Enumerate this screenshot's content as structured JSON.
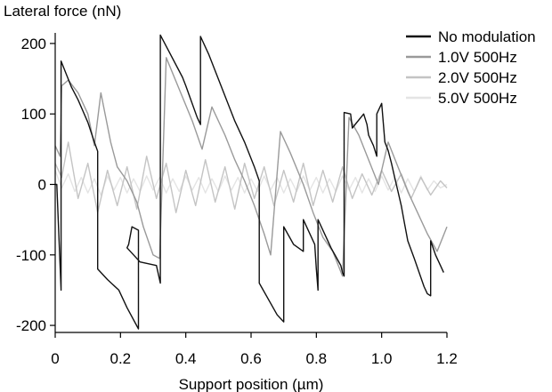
{
  "chart_data": {
    "type": "line",
    "title": "",
    "xlabel": "Support position (µm)",
    "ylabel": "Lateral force (nN)",
    "xlim": [
      0,
      1.2
    ],
    "ylim": [
      -210,
      215
    ],
    "x_ticks": [
      0,
      0.2,
      0.4,
      0.6,
      0.8,
      1.0,
      1.2
    ],
    "x_tick_labels": [
      "0",
      "0.2",
      "0.4",
      "0.6",
      "0.8",
      "1.0",
      "1.2"
    ],
    "y_ticks": [
      200,
      100,
      0,
      -100,
      -200
    ],
    "y_tick_labels": [
      "200",
      "100",
      "0",
      "-100",
      "-200"
    ],
    "grid": false,
    "legend_position": "top-right",
    "series": [
      {
        "name": "No modulation",
        "color": "#111111",
        "points": [
          [
            0.0,
            0.0
          ],
          [
            0.005,
            0.0
          ],
          [
            0.018,
            -150
          ],
          [
            0.018,
            175
          ],
          [
            0.05,
            138
          ],
          [
            0.07,
            120
          ],
          [
            0.1,
            88
          ],
          [
            0.12,
            60
          ],
          [
            0.13,
            47
          ],
          [
            0.13,
            -120
          ],
          [
            0.16,
            -135
          ],
          [
            0.195,
            -150
          ],
          [
            0.22,
            -175
          ],
          [
            0.255,
            -205
          ],
          [
            0.255,
            -65
          ],
          [
            0.235,
            -60
          ],
          [
            0.225,
            -85
          ],
          [
            0.22,
            -90
          ],
          [
            0.26,
            -110
          ],
          [
            0.31,
            -115
          ],
          [
            0.322,
            -140
          ],
          [
            0.322,
            212
          ],
          [
            0.39,
            152
          ],
          [
            0.4,
            140
          ],
          [
            0.435,
            95
          ],
          [
            0.445,
            85
          ],
          [
            0.445,
            210
          ],
          [
            0.47,
            185
          ],
          [
            0.55,
            90
          ],
          [
            0.58,
            60
          ],
          [
            0.61,
            25
          ],
          [
            0.625,
            5
          ],
          [
            0.625,
            -140
          ],
          [
            0.68,
            -185
          ],
          [
            0.7,
            -195
          ],
          [
            0.7,
            -60
          ],
          [
            0.73,
            -85
          ],
          [
            0.76,
            -95
          ],
          [
            0.76,
            -50
          ],
          [
            0.795,
            -85
          ],
          [
            0.8,
            -120
          ],
          [
            0.805,
            -150
          ],
          [
            0.805,
            -50
          ],
          [
            0.835,
            -80
          ],
          [
            0.845,
            -90
          ],
          [
            0.875,
            -115
          ],
          [
            0.88,
            -125
          ],
          [
            0.885,
            -130
          ],
          [
            0.885,
            102
          ],
          [
            0.905,
            100
          ],
          [
            0.91,
            80
          ],
          [
            0.945,
            100
          ],
          [
            0.955,
            85
          ],
          [
            0.96,
            70
          ],
          [
            0.975,
            55
          ],
          [
            0.985,
            40
          ],
          [
            0.985,
            100
          ],
          [
            1.0,
            115
          ],
          [
            1.01,
            60
          ],
          [
            1.02,
            48
          ],
          [
            1.03,
            30
          ],
          [
            1.04,
            10
          ],
          [
            1.05,
            -10
          ],
          [
            1.06,
            -30
          ],
          [
            1.07,
            -55
          ],
          [
            1.08,
            -80
          ],
          [
            1.1,
            -105
          ],
          [
            1.115,
            -125
          ],
          [
            1.13,
            -145
          ],
          [
            1.14,
            -155
          ],
          [
            1.15,
            -158
          ],
          [
            1.15,
            -80
          ],
          [
            1.165,
            -100
          ],
          [
            1.18,
            -115
          ],
          [
            1.19,
            -125
          ]
        ]
      },
      {
        "name": "1.0V 500Hz",
        "color": "#9a9a9a",
        "points": [
          [
            0.0,
            55
          ],
          [
            0.015,
            40
          ],
          [
            0.02,
            140
          ],
          [
            0.04,
            148
          ],
          [
            0.07,
            130
          ],
          [
            0.1,
            100
          ],
          [
            0.12,
            55
          ],
          [
            0.14,
            130
          ],
          [
            0.17,
            60
          ],
          [
            0.19,
            25
          ],
          [
            0.22,
            5
          ],
          [
            0.25,
            -25
          ],
          [
            0.27,
            -60
          ],
          [
            0.3,
            -100
          ],
          [
            0.32,
            -105
          ],
          [
            0.34,
            180
          ],
          [
            0.38,
            135
          ],
          [
            0.42,
            90
          ],
          [
            0.45,
            50
          ],
          [
            0.48,
            110
          ],
          [
            0.52,
            70
          ],
          [
            0.55,
            35
          ],
          [
            0.58,
            5
          ],
          [
            0.61,
            -30
          ],
          [
            0.64,
            -70
          ],
          [
            0.66,
            -100
          ],
          [
            0.69,
            75
          ],
          [
            0.72,
            45
          ],
          [
            0.76,
            0
          ],
          [
            0.79,
            -40
          ],
          [
            0.82,
            -75
          ],
          [
            0.85,
            -95
          ],
          [
            0.88,
            -130
          ],
          [
            0.9,
            95
          ],
          [
            0.93,
            70
          ],
          [
            0.96,
            35
          ],
          [
            0.99,
            0
          ],
          [
            1.02,
            60
          ],
          [
            1.05,
            25
          ],
          [
            1.08,
            -10
          ],
          [
            1.11,
            -40
          ],
          [
            1.14,
            -70
          ],
          [
            1.17,
            -95
          ],
          [
            1.2,
            -60
          ]
        ]
      },
      {
        "name": "2.0V 500Hz",
        "color": "#c4c4c4",
        "points": [
          [
            0.0,
            30
          ],
          [
            0.02,
            10
          ],
          [
            0.04,
            60
          ],
          [
            0.07,
            -20
          ],
          [
            0.1,
            30
          ],
          [
            0.13,
            -40
          ],
          [
            0.16,
            20
          ],
          [
            0.19,
            -30
          ],
          [
            0.22,
            25
          ],
          [
            0.25,
            -35
          ],
          [
            0.28,
            40
          ],
          [
            0.31,
            -20
          ],
          [
            0.34,
            30
          ],
          [
            0.37,
            -40
          ],
          [
            0.4,
            20
          ],
          [
            0.43,
            -30
          ],
          [
            0.46,
            35
          ],
          [
            0.49,
            -25
          ],
          [
            0.52,
            25
          ],
          [
            0.55,
            -35
          ],
          [
            0.58,
            30
          ],
          [
            0.61,
            -20
          ],
          [
            0.64,
            25
          ],
          [
            0.67,
            -30
          ],
          [
            0.7,
            20
          ],
          [
            0.73,
            -25
          ],
          [
            0.76,
            30
          ],
          [
            0.79,
            -30
          ],
          [
            0.82,
            20
          ],
          [
            0.85,
            -25
          ],
          [
            0.88,
            25
          ],
          [
            0.91,
            -20
          ],
          [
            0.94,
            15
          ],
          [
            0.97,
            -15
          ],
          [
            1.0,
            20
          ],
          [
            1.03,
            -10
          ],
          [
            1.06,
            15
          ],
          [
            1.09,
            -20
          ],
          [
            1.12,
            10
          ],
          [
            1.15,
            -15
          ],
          [
            1.18,
            5
          ],
          [
            1.2,
            -5
          ]
        ]
      },
      {
        "name": "5.0V 500Hz",
        "color": "#e4e4e4",
        "points": [
          [
            0.0,
            20
          ],
          [
            0.02,
            -5
          ],
          [
            0.04,
            15
          ],
          [
            0.06,
            -10
          ],
          [
            0.08,
            10
          ],
          [
            0.1,
            -12
          ],
          [
            0.12,
            8
          ],
          [
            0.14,
            -15
          ],
          [
            0.16,
            12
          ],
          [
            0.18,
            -8
          ],
          [
            0.2,
            10
          ],
          [
            0.22,
            -12
          ],
          [
            0.24,
            8
          ],
          [
            0.26,
            -10
          ],
          [
            0.28,
            12
          ],
          [
            0.3,
            -8
          ],
          [
            0.32,
            10
          ],
          [
            0.34,
            -12
          ],
          [
            0.36,
            8
          ],
          [
            0.38,
            -10
          ],
          [
            0.4,
            12
          ],
          [
            0.42,
            -8
          ],
          [
            0.44,
            10
          ],
          [
            0.46,
            -12
          ],
          [
            0.48,
            8
          ],
          [
            0.5,
            -10
          ],
          [
            0.52,
            12
          ],
          [
            0.54,
            -8
          ],
          [
            0.56,
            10
          ],
          [
            0.58,
            -12
          ],
          [
            0.6,
            8
          ],
          [
            0.62,
            -10
          ],
          [
            0.64,
            12
          ],
          [
            0.66,
            -8
          ],
          [
            0.68,
            10
          ],
          [
            0.7,
            -12
          ],
          [
            0.72,
            8
          ],
          [
            0.74,
            -10
          ],
          [
            0.76,
            12
          ],
          [
            0.78,
            -8
          ],
          [
            0.8,
            10
          ],
          [
            0.82,
            -12
          ],
          [
            0.84,
            8
          ],
          [
            0.86,
            -10
          ],
          [
            0.88,
            12
          ],
          [
            0.9,
            -8
          ],
          [
            0.92,
            10
          ],
          [
            0.94,
            -12
          ],
          [
            0.96,
            8
          ],
          [
            0.98,
            -10
          ],
          [
            1.0,
            12
          ],
          [
            1.02,
            -8
          ],
          [
            1.04,
            10
          ],
          [
            1.06,
            -12
          ],
          [
            1.08,
            8
          ],
          [
            1.1,
            -10
          ],
          [
            1.12,
            12
          ],
          [
            1.14,
            -8
          ],
          [
            1.16,
            5
          ],
          [
            1.18,
            -5
          ],
          [
            1.2,
            0
          ]
        ]
      }
    ]
  }
}
